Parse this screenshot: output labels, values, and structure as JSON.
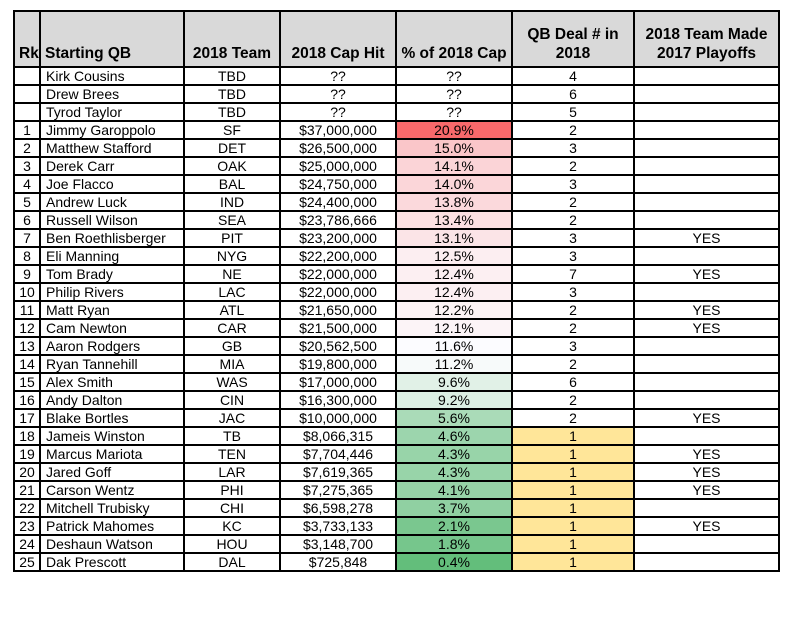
{
  "colors": {
    "header_bg": "#d9d9d9",
    "grid_border": "#000000",
    "scale_max_red": "#F8696B",
    "scale_mid_white": "#FCFCFF",
    "scale_min_green": "#63BE7B",
    "deal_one_highlight": "#FFE699"
  },
  "table": {
    "columns": [
      {
        "key": "rk",
        "label": "Rk"
      },
      {
        "key": "qb",
        "label": "Starting QB"
      },
      {
        "key": "team",
        "label": "2018 Team"
      },
      {
        "key": "cap",
        "label": "2018 Cap Hit"
      },
      {
        "key": "pct",
        "label": "% of 2018 Cap"
      },
      {
        "key": "deal",
        "label": "QB Deal # in 2018"
      },
      {
        "key": "playoffs",
        "label": "2018 Team Made 2017 Playoffs"
      }
    ],
    "rows": [
      {
        "rk": "",
        "qb": "Kirk Cousins",
        "team": "TBD",
        "cap": "??",
        "pct": "??",
        "pct_bg": "#FFFFFF",
        "deal": "4",
        "deal_bg": "#FFFFFF",
        "playoffs": ""
      },
      {
        "rk": "",
        "qb": "Drew Brees",
        "team": "TBD",
        "cap": "??",
        "pct": "??",
        "pct_bg": "#FFFFFF",
        "deal": "6",
        "deal_bg": "#FFFFFF",
        "playoffs": ""
      },
      {
        "rk": "",
        "qb": "Tyrod Taylor",
        "team": "TBD",
        "cap": "??",
        "pct": "??",
        "pct_bg": "#FFFFFF",
        "deal": "5",
        "deal_bg": "#FFFFFF",
        "playoffs": ""
      },
      {
        "rk": "1",
        "qb": "Jimmy Garoppolo",
        "team": "SF",
        "cap": "$37,000,000",
        "pct": "20.9%",
        "pct_bg": "#F8696B",
        "deal": "2",
        "deal_bg": "#FFFFFF",
        "playoffs": ""
      },
      {
        "rk": "2",
        "qb": "Matthew Stafford",
        "team": "DET",
        "cap": "$26,500,000",
        "pct": "15.0%",
        "pct_bg": "#FAC6C9",
        "deal": "3",
        "deal_bg": "#FFFFFF",
        "playoffs": ""
      },
      {
        "rk": "3",
        "qb": "Derek Carr",
        "team": "OAK",
        "cap": "$25,000,000",
        "pct": "14.1%",
        "pct_bg": "#FBD4D7",
        "deal": "2",
        "deal_bg": "#FFFFFF",
        "playoffs": ""
      },
      {
        "rk": "4",
        "qb": "Joe Flacco",
        "team": "BAL",
        "cap": "$24,750,000",
        "pct": "14.0%",
        "pct_bg": "#FBD6D9",
        "deal": "3",
        "deal_bg": "#FFFFFF",
        "playoffs": ""
      },
      {
        "rk": "5",
        "qb": "Andrew Luck",
        "team": "IND",
        "cap": "$24,400,000",
        "pct": "13.8%",
        "pct_bg": "#FBD9DC",
        "deal": "2",
        "deal_bg": "#FFFFFF",
        "playoffs": ""
      },
      {
        "rk": "6",
        "qb": "Russell Wilson",
        "team": "SEA",
        "cap": "$23,786,666",
        "pct": "13.4%",
        "pct_bg": "#FBE0E2",
        "deal": "2",
        "deal_bg": "#FFFFFF",
        "playoffs": ""
      },
      {
        "rk": "7",
        "qb": "Ben Roethlisberger",
        "team": "PIT",
        "cap": "$23,200,000",
        "pct": "13.1%",
        "pct_bg": "#FBE4E7",
        "deal": "3",
        "deal_bg": "#FFFFFF",
        "playoffs": "YES"
      },
      {
        "rk": "8",
        "qb": "Eli Manning",
        "team": "NYG",
        "cap": "$22,200,000",
        "pct": "12.5%",
        "pct_bg": "#FCEEF1",
        "deal": "3",
        "deal_bg": "#FFFFFF",
        "playoffs": ""
      },
      {
        "rk": "9",
        "qb": "Tom Brady",
        "team": "NE",
        "cap": "$22,000,000",
        "pct": "12.4%",
        "pct_bg": "#FCEFF2",
        "deal": "7",
        "deal_bg": "#FFFFFF",
        "playoffs": "YES"
      },
      {
        "rk": "10",
        "qb": "Philip Rivers",
        "team": "LAC",
        "cap": "$22,000,000",
        "pct": "12.4%",
        "pct_bg": "#FCEFF2",
        "deal": "3",
        "deal_bg": "#FFFFFF",
        "playoffs": ""
      },
      {
        "rk": "11",
        "qb": "Matt Ryan",
        "team": "ATL",
        "cap": "$21,650,000",
        "pct": "12.2%",
        "pct_bg": "#FCF3F5",
        "deal": "2",
        "deal_bg": "#FFFFFF",
        "playoffs": "YES"
      },
      {
        "rk": "12",
        "qb": "Cam Newton",
        "team": "CAR",
        "cap": "$21,500,000",
        "pct": "12.1%",
        "pct_bg": "#FCF4F7",
        "deal": "2",
        "deal_bg": "#FFFFFF",
        "playoffs": "YES"
      },
      {
        "rk": "13",
        "qb": "Aaron Rodgers",
        "team": "GB",
        "cap": "$20,562,500",
        "pct": "11.6%",
        "pct_bg": "#FCFCFF",
        "deal": "3",
        "deal_bg": "#FFFFFF",
        "playoffs": ""
      },
      {
        "rk": "14",
        "qb": "Ryan Tannehill",
        "team": "MIA",
        "cap": "$19,800,000",
        "pct": "11.2%",
        "pct_bg": "#F7FAFA",
        "deal": "2",
        "deal_bg": "#FFFFFF",
        "playoffs": ""
      },
      {
        "rk": "15",
        "qb": "Alex Smith",
        "team": "WAS",
        "cap": "$17,000,000",
        "pct": "9.6%",
        "pct_bg": "#E1F1E7",
        "deal": "6",
        "deal_bg": "#FFFFFF",
        "playoffs": ""
      },
      {
        "rk": "16",
        "qb": "Andy Dalton",
        "team": "CIN",
        "cap": "$16,300,000",
        "pct": "9.2%",
        "pct_bg": "#DBEFE3",
        "deal": "2",
        "deal_bg": "#FFFFFF",
        "playoffs": ""
      },
      {
        "rk": "17",
        "qb": "Blake Bortles",
        "team": "JAC",
        "cap": "$10,000,000",
        "pct": "5.6%",
        "pct_bg": "#AADBB8",
        "deal": "2",
        "deal_bg": "#FFFFFF",
        "playoffs": "YES"
      },
      {
        "rk": "18",
        "qb": "Jameis Winston",
        "team": "TB",
        "cap": "$8,066,315",
        "pct": "4.6%",
        "pct_bg": "#9CD5AD",
        "deal": "1",
        "deal_bg": "#FFE699",
        "playoffs": ""
      },
      {
        "rk": "19",
        "qb": "Marcus Mariota",
        "team": "TEN",
        "cap": "$7,704,446",
        "pct": "4.3%",
        "pct_bg": "#98D4A9",
        "deal": "1",
        "deal_bg": "#FFE699",
        "playoffs": "YES"
      },
      {
        "rk": "20",
        "qb": "Jared Goff",
        "team": "LAR",
        "cap": "$7,619,365",
        "pct": "4.3%",
        "pct_bg": "#98D4A9",
        "deal": "1",
        "deal_bg": "#FFE699",
        "playoffs": "YES"
      },
      {
        "rk": "21",
        "qb": "Carson Wentz",
        "team": "PHI",
        "cap": "$7,275,365",
        "pct": "4.1%",
        "pct_bg": "#96D3A7",
        "deal": "1",
        "deal_bg": "#FFE699",
        "playoffs": "YES"
      },
      {
        "rk": "22",
        "qb": "Mitchell Trubisky",
        "team": "CHI",
        "cap": "$6,598,278",
        "pct": "3.7%",
        "pct_bg": "#90D0A2",
        "deal": "1",
        "deal_bg": "#FFE699",
        "playoffs": ""
      },
      {
        "rk": "23",
        "qb": "Patrick Mahomes",
        "team": "KC",
        "cap": "$3,733,133",
        "pct": "2.1%",
        "pct_bg": "#7AC78F",
        "deal": "1",
        "deal_bg": "#FFE699",
        "playoffs": "YES"
      },
      {
        "rk": "24",
        "qb": "Deshaun Watson",
        "team": "HOU",
        "cap": "$3,148,700",
        "pct": "1.8%",
        "pct_bg": "#76C68C",
        "deal": "1",
        "deal_bg": "#FFE699",
        "playoffs": ""
      },
      {
        "rk": "25",
        "qb": "Dak Prescott",
        "team": "DAL",
        "cap": "$725,848",
        "pct": "0.4%",
        "pct_bg": "#63BE7B",
        "deal": "1",
        "deal_bg": "#FFE699",
        "playoffs": ""
      }
    ]
  }
}
